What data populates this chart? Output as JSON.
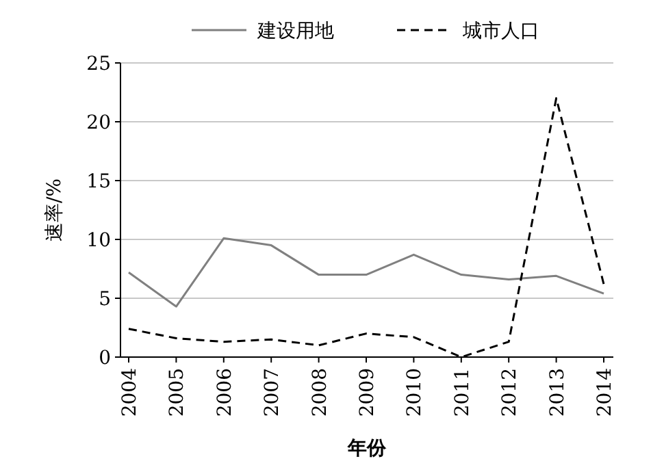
{
  "chart_data": {
    "type": "line",
    "xlabel": "年份",
    "ylabel": "速率/%",
    "categories": [
      "2004",
      "2005",
      "2006",
      "2007",
      "2008",
      "2009",
      "2010",
      "2011",
      "2012",
      "2013",
      "2014"
    ],
    "series": [
      {
        "name": "建设用地",
        "color": "#808080",
        "line_style": "solid",
        "values": [
          7.2,
          4.3,
          10.1,
          9.5,
          7.0,
          7.0,
          8.7,
          7.0,
          6.6,
          6.9,
          5.4
        ]
      },
      {
        "name": "城市人口",
        "color": "#000000",
        "line_style": "dashed",
        "values": [
          2.4,
          1.6,
          1.3,
          1.5,
          1.0,
          2.0,
          1.7,
          0,
          1.3,
          22.0,
          6.2
        ]
      }
    ],
    "ylim": [
      0,
      25
    ],
    "yticks": [
      0,
      5,
      10,
      15,
      20,
      25
    ],
    "grid": "y",
    "legend": "top",
    "marker": "none"
  }
}
